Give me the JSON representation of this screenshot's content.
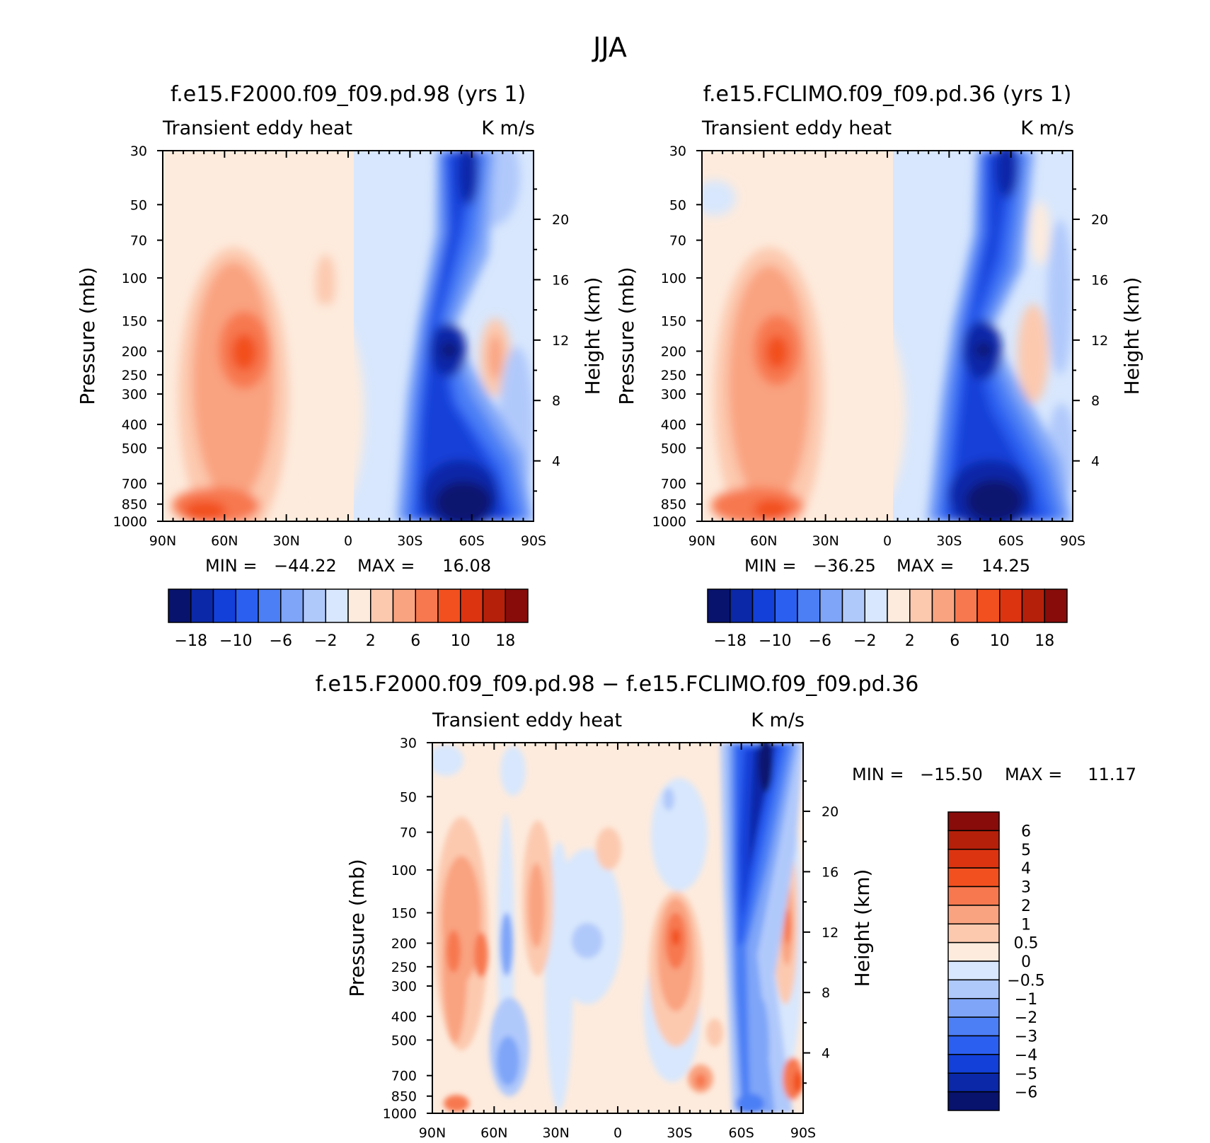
{
  "title": "JJA",
  "colors": {
    "blue_to_red": [
      "#08136e",
      "#0a28a8",
      "#1240d8",
      "#2b5ff0",
      "#4c7ff5",
      "#7ea5f8",
      "#b0c9fb",
      "#d8e7fd",
      "#fdebdd",
      "#fcc9af",
      "#f9a380",
      "#f7784f",
      "#f2501f",
      "#dc3411",
      "#b5200a",
      "#870c0a"
    ]
  },
  "chart_data": [
    {
      "type": "contour",
      "title": "f.e15.F2000.f09_f09.pd.98 (yrs 1)",
      "variable_label": "Transient eddy heat",
      "units": "K m/s",
      "ylabel": "Pressure (mb)",
      "ylabel_right": "Height (km)",
      "x_ticks": [
        "90N",
        "60N",
        "30N",
        "0",
        "30S",
        "60S",
        "90S"
      ],
      "y_ticks": [
        "30",
        "50",
        "70",
        "100",
        "150",
        "200",
        "250",
        "300",
        "400",
        "500",
        "700",
        "850",
        "1000"
      ],
      "y_ticks_right": [
        "20",
        "16",
        "12",
        "8",
        "4"
      ],
      "min_label": "MIN =",
      "min": "−44.22",
      "max_label": "MAX =",
      "max": "16.08",
      "colorbar_labels": [
        "−18",
        "−10",
        "−6",
        "−2",
        "2",
        "6",
        "10",
        "18"
      ],
      "features": [
        {
          "lat": 55,
          "p": 200,
          "value": 12,
          "label": "NH upper-level maximum"
        },
        {
          "lat": 72,
          "p": 950,
          "value": 16.08,
          "label": "NH surface maximum"
        },
        {
          "lat": -55,
          "p": 200,
          "value": -22,
          "label": "SH upper-level minimum"
        },
        {
          "lat": -55,
          "p": 850,
          "value": -44.22,
          "label": "SH surface minimum"
        }
      ]
    },
    {
      "type": "contour",
      "title": "f.e15.FCLIMO.f09_f09.pd.36 (yrs 1)",
      "variable_label": "Transient eddy heat",
      "units": "K m/s",
      "ylabel": "Pressure (mb)",
      "ylabel_right": "Height (km)",
      "x_ticks": [
        "90N",
        "60N",
        "30N",
        "0",
        "30S",
        "60S",
        "90S"
      ],
      "y_ticks": [
        "30",
        "50",
        "70",
        "100",
        "150",
        "200",
        "250",
        "300",
        "400",
        "500",
        "700",
        "850",
        "1000"
      ],
      "y_ticks_right": [
        "20",
        "16",
        "12",
        "8",
        "4"
      ],
      "min_label": "MIN =",
      "min": "−36.25",
      "max_label": "MAX =",
      "max": "14.25",
      "colorbar_labels": [
        "−18",
        "−10",
        "−6",
        "−2",
        "2",
        "6",
        "10",
        "18"
      ],
      "features": [
        {
          "lat": 55,
          "p": 200,
          "value": 12,
          "label": "NH upper-level maximum"
        },
        {
          "lat": 70,
          "p": 950,
          "value": 14.25,
          "label": "NH surface maximum"
        },
        {
          "lat": -45,
          "p": 200,
          "value": -20,
          "label": "SH upper-level minimum"
        },
        {
          "lat": -50,
          "p": 850,
          "value": -36.25,
          "label": "SH surface minimum"
        }
      ]
    },
    {
      "type": "contour",
      "title": "f.e15.F2000.f09_f09.pd.98 − f.e15.FCLIMO.f09_f09.pd.36",
      "variable_label": "Transient eddy heat",
      "units": "K m/s",
      "ylabel": "Pressure (mb)",
      "ylabel_right": "Height (km)",
      "x_ticks": [
        "90N",
        "60N",
        "30N",
        "0",
        "30S",
        "60S",
        "90S"
      ],
      "y_ticks": [
        "30",
        "50",
        "70",
        "100",
        "150",
        "200",
        "250",
        "300",
        "400",
        "500",
        "700",
        "850",
        "1000"
      ],
      "y_ticks_right": [
        "20",
        "16",
        "12",
        "8",
        "4"
      ],
      "min_label": "MIN =",
      "min": "−15.50",
      "max_label": "MAX =",
      "max": "11.17",
      "colorbar_levels": [
        "6",
        "5",
        "4",
        "3",
        "2",
        "1",
        "0.5",
        "0",
        "−0.5",
        "−1",
        "−2",
        "−3",
        "−4",
        "−5",
        "−6"
      ],
      "features": [
        {
          "lat": -30,
          "p": 200,
          "value": 4,
          "label": "SH subtropical positive"
        },
        {
          "lat": -68,
          "p": 70,
          "value": -15.5,
          "label": "SH stratospheric negative"
        },
        {
          "lat": -85,
          "p": 850,
          "value": 11.17,
          "label": "Antarctic surface positive"
        }
      ]
    }
  ]
}
